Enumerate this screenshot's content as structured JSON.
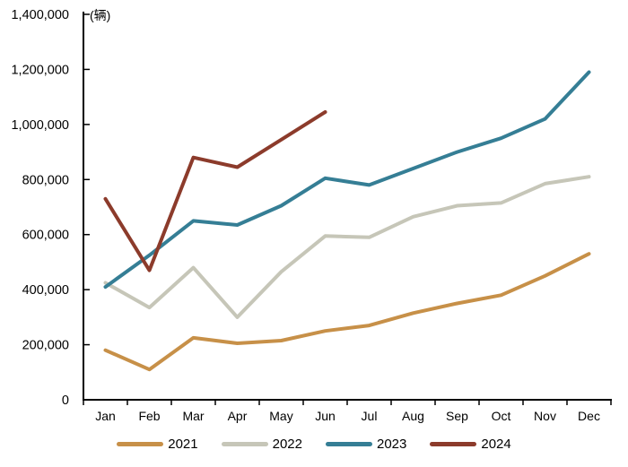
{
  "chart_data": {
    "type": "line",
    "title": "",
    "unit_label": "(辆)",
    "xlabel": "",
    "ylabel": "(辆)",
    "ylim": [
      0,
      1400000
    ],
    "grid": false,
    "legend_position": "bottom",
    "axis_color": "#000000",
    "background_color": "#ffffff",
    "categories": [
      "Jan",
      "Feb",
      "Mar",
      "Apr",
      "May",
      "Jun",
      "Jul",
      "Aug",
      "Sep",
      "Oct",
      "Nov",
      "Dec"
    ],
    "y_ticks": [
      0,
      200000,
      400000,
      600000,
      800000,
      1000000,
      1200000,
      1400000
    ],
    "y_tick_labels": [
      "0",
      "200,000",
      "400,000",
      "600,000",
      "800,000",
      "1,000,000",
      "1,200,000",
      "1,400,000"
    ],
    "series": [
      {
        "name": "2021",
        "color": "#C79048",
        "values": [
          180000,
          110000,
          225000,
          205000,
          215000,
          250000,
          270000,
          315000,
          350000,
          380000,
          450000,
          530000
        ]
      },
      {
        "name": "2022",
        "color": "#C6C6B8",
        "values": [
          425000,
          335000,
          480000,
          300000,
          465000,
          595000,
          590000,
          665000,
          705000,
          715000,
          785000,
          810000
        ]
      },
      {
        "name": "2023",
        "color": "#357E95",
        "values": [
          410000,
          525000,
          650000,
          635000,
          705000,
          805000,
          780000,
          840000,
          900000,
          950000,
          1020000,
          1190000
        ]
      },
      {
        "name": "2024",
        "color": "#8C3B2B",
        "values": [
          730000,
          470000,
          880000,
          845000,
          945000,
          1045000
        ]
      }
    ]
  }
}
